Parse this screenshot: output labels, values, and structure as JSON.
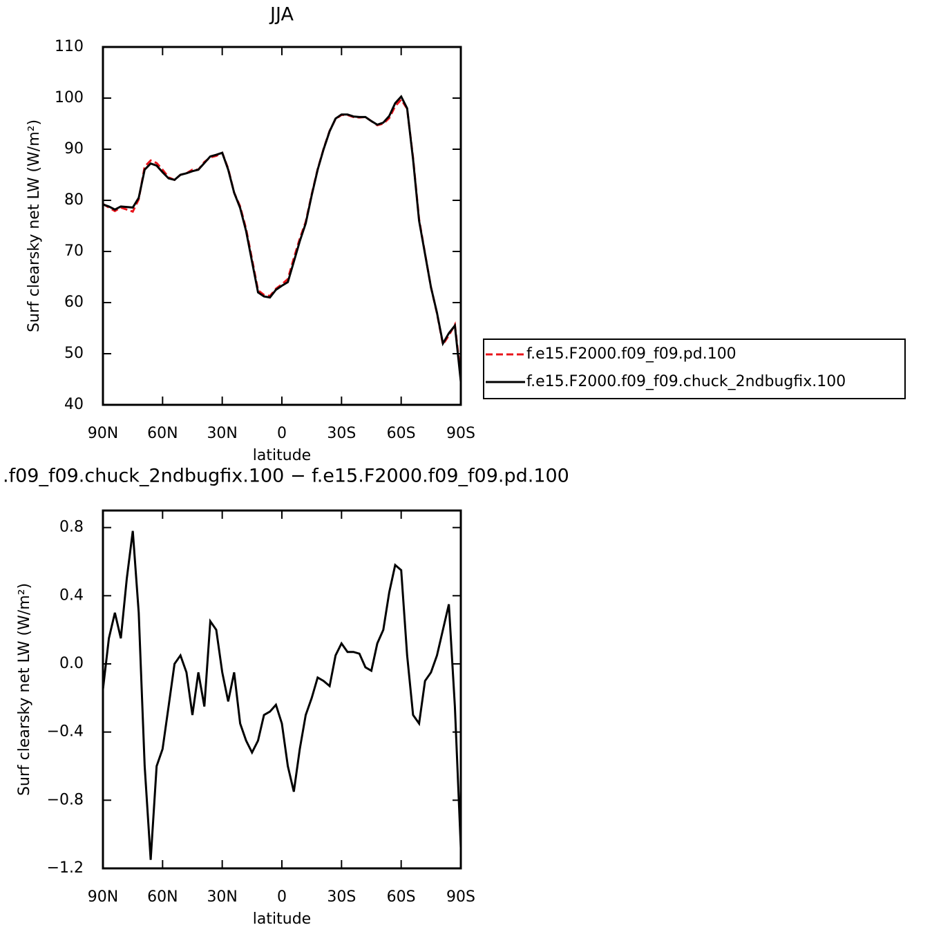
{
  "chart_data": [
    {
      "type": "line",
      "title": "JJA",
      "xlabel": "latitude",
      "ylabel": "Surf clearsky net LW (W/m²)",
      "x": [
        90,
        87,
        84,
        81,
        78,
        75,
        72,
        69,
        66,
        63,
        60,
        57,
        54,
        51,
        48,
        45,
        42,
        39,
        36,
        33,
        30,
        27,
        24,
        21,
        18,
        15,
        12,
        9,
        6,
        3,
        0,
        -3,
        -6,
        -9,
        -12,
        -15,
        -18,
        -21,
        -24,
        -27,
        -30,
        -33,
        -36,
        -39,
        -42,
        -45,
        -48,
        -51,
        -54,
        -57,
        -60,
        -63,
        -66,
        -69,
        -72,
        -75,
        -78,
        -81,
        -84,
        -87,
        -90
      ],
      "series": [
        {
          "name": "f.e15.F2000.f09_f09.pd.100",
          "color": "#e8141b",
          "linestyle": "dashed",
          "values": [
            79.3,
            78.6,
            77.9,
            78.6,
            78.2,
            77.8,
            80.2,
            86.6,
            87.8,
            87.3,
            86.0,
            84.5,
            84.0,
            85.0,
            85.3,
            86.0,
            86.0,
            87.5,
            88.4,
            88.7,
            89.3,
            86.2,
            81.5,
            78.8,
            74.4,
            68.5,
            62.4,
            61.5,
            61.3,
            62.7,
            63.6,
            64.6,
            68.7,
            72.5,
            75.8,
            81.2,
            86.1,
            90.1,
            93.6,
            95.9,
            96.7,
            96.7,
            96.3,
            96.2,
            96.3,
            95.5,
            94.7,
            95.0,
            96.1,
            98.4,
            99.7,
            97.9,
            88.3,
            76.3,
            69.6,
            63.0,
            57.9,
            51.8,
            53.6,
            55.7,
            45.5
          ]
        },
        {
          "name": "f.e15.F2000.f09_f09.chuck_2ndbugfix.100",
          "color": "#000000",
          "linestyle": "solid",
          "values": [
            79.2,
            78.8,
            78.2,
            78.8,
            78.7,
            78.6,
            80.5,
            86.0,
            87.2,
            86.8,
            85.5,
            84.3,
            84.0,
            85.0,
            85.3,
            85.7,
            86.0,
            87.3,
            88.6,
            88.9,
            89.3,
            86.0,
            81.5,
            78.5,
            74.0,
            68.0,
            62.0,
            61.2,
            61.0,
            62.5,
            63.3,
            64.0,
            68.0,
            72.0,
            75.5,
            81.0,
            86.0,
            90.0,
            93.5,
            96.0,
            96.8,
            96.8,
            96.4,
            96.3,
            96.3,
            95.5,
            94.8,
            95.2,
            96.5,
            99.0,
            100.3,
            98.0,
            88.0,
            76.0,
            69.5,
            63.0,
            58.0,
            52.0,
            54.0,
            55.5,
            44.5
          ]
        }
      ],
      "xlim": [
        90,
        -90
      ],
      "xticks": [
        {
          "value": 90,
          "label": "90N"
        },
        {
          "value": 60,
          "label": "60N"
        },
        {
          "value": 30,
          "label": "30N"
        },
        0,
        {
          "value": -30,
          "label": "30S"
        },
        {
          "value": -60,
          "label": "60S"
        },
        {
          "value": -90,
          "label": "90S"
        }
      ],
      "ylim": [
        40,
        110
      ],
      "yticks": [
        40,
        50,
        60,
        70,
        80,
        90,
        100,
        110
      ],
      "legend": "right"
    },
    {
      "type": "line",
      "title": ".f09_f09.chuck_2ndbugfix.100 − f.e15.F2000.f09_f09.pd.100",
      "xlabel": "latitude",
      "ylabel": "Surf clearsky net LW (W/m²)",
      "x": [
        90,
        87,
        84,
        81,
        78,
        75,
        72,
        69,
        66,
        63,
        60,
        57,
        54,
        51,
        48,
        45,
        42,
        39,
        36,
        33,
        30,
        27,
        24,
        21,
        18,
        15,
        12,
        9,
        6,
        3,
        0,
        -3,
        -6,
        -9,
        -12,
        -15,
        -18,
        -21,
        -24,
        -27,
        -30,
        -33,
        -36,
        -39,
        -42,
        -45,
        -48,
        -51,
        -54,
        -57,
        -60,
        -63,
        -66,
        -69,
        -72,
        -75,
        -78,
        -81,
        -84,
        -87,
        -90
      ],
      "color": "#000000",
      "values": [
        -0.15,
        0.15,
        0.3,
        0.15,
        0.5,
        0.78,
        0.3,
        -0.6,
        -1.15,
        -0.6,
        -0.5,
        -0.25,
        0.0,
        0.05,
        -0.05,
        -0.3,
        -0.05,
        -0.25,
        0.25,
        0.2,
        -0.05,
        -0.22,
        -0.05,
        -0.35,
        -0.45,
        -0.52,
        -0.45,
        -0.3,
        -0.28,
        -0.24,
        -0.35,
        -0.6,
        -0.75,
        -0.5,
        -0.3,
        -0.2,
        -0.08,
        -0.1,
        -0.13,
        0.05,
        0.12,
        0.07,
        0.07,
        0.06,
        -0.02,
        -0.04,
        0.12,
        0.2,
        0.42,
        0.58,
        0.55,
        0.05,
        -0.3,
        -0.35,
        -0.1,
        -0.05,
        0.05,
        0.2,
        0.35,
        -0.25,
        -1.08
      ],
      "xlim": [
        90,
        -90
      ],
      "xticks": [
        {
          "value": 90,
          "label": "90N"
        },
        {
          "value": 60,
          "label": "60N"
        },
        {
          "value": 30,
          "label": "30N"
        },
        0,
        {
          "value": -30,
          "label": "30S"
        },
        {
          "value": -60,
          "label": "60S"
        },
        {
          "value": -90,
          "label": "90S"
        }
      ],
      "ylim": [
        -1.2,
        0.9
      ],
      "yticks": [
        {
          "value": -1.2,
          "label": "−1.2"
        },
        {
          "value": -0.8,
          "label": "−0.8"
        },
        {
          "value": -0.4,
          "label": "−0.4"
        },
        {
          "value": 0,
          "label": "0.0"
        },
        0.4,
        0.8
      ]
    }
  ]
}
